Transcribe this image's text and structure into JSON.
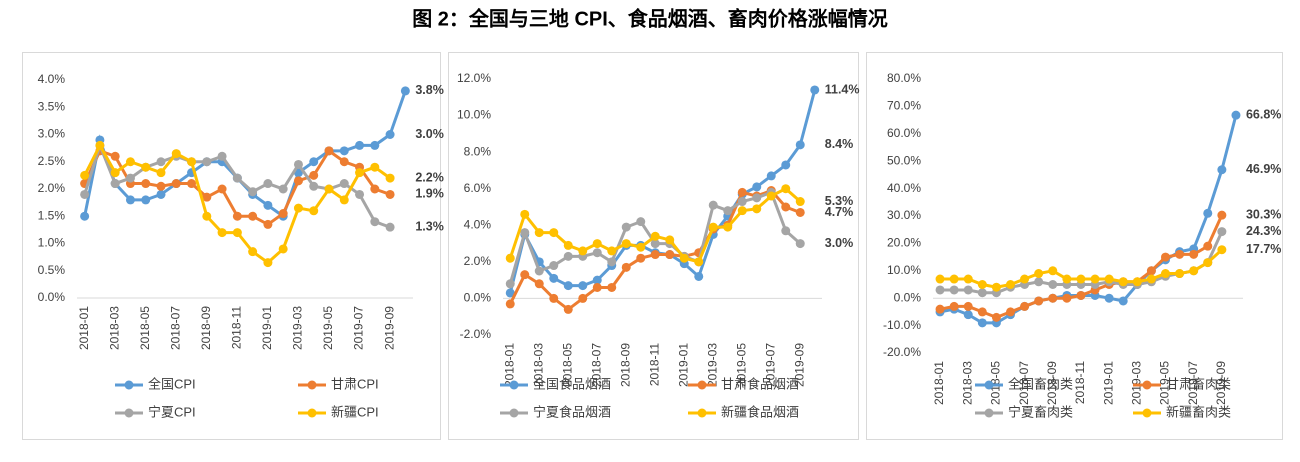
{
  "title": "图 2：全国与三地 CPI、食品烟酒、畜肉价格涨幅情况",
  "chart_data": [
    {
      "type": "line",
      "categories": [
        "2018-01",
        null,
        "2018-03",
        null,
        "2018-05",
        null,
        "2018-07",
        null,
        "2018-09",
        null,
        "2018-11",
        null,
        "2019-01",
        null,
        "2019-03",
        null,
        "2019-05",
        null,
        "2019-07",
        null,
        "2019-09",
        null
      ],
      "ylim": [
        0,
        4
      ],
      "yticks": [
        {
          "value": 0,
          "label": "0.0%"
        },
        {
          "value": 0.5,
          "label": "0.5%"
        },
        {
          "value": 1,
          "label": "1.0%"
        },
        {
          "value": 1.5,
          "label": "1.5%"
        },
        {
          "value": 2,
          "label": "2.0%"
        },
        {
          "value": 2.5,
          "label": "2.5%"
        },
        {
          "value": 3,
          "label": "3.0%"
        },
        {
          "value": 3.5,
          "label": "3.5%"
        },
        {
          "value": 4,
          "label": "4.0%"
        }
      ],
      "series": [
        {
          "name": "全国CPI",
          "color": "#5b9bd5",
          "values": [
            1.5,
            2.9,
            2.1,
            1.8,
            1.8,
            1.9,
            2.1,
            2.3,
            2.5,
            2.5,
            2.2,
            1.9,
            1.7,
            1.5,
            2.3,
            2.5,
            2.7,
            2.7,
            2.8,
            2.8,
            3.0,
            3.8
          ],
          "value_labels": [
            null,
            null,
            null,
            null,
            null,
            null,
            null,
            null,
            null,
            null,
            null,
            null,
            null,
            null,
            null,
            null,
            null,
            null,
            null,
            null,
            "3.0%",
            "3.8%"
          ]
        },
        {
          "name": "甘肃CPI",
          "color": "#ed7d31",
          "values": [
            2.1,
            2.7,
            2.6,
            2.1,
            2.1,
            2.05,
            2.1,
            2.1,
            1.85,
            2.0,
            1.5,
            1.5,
            1.35,
            1.55,
            2.15,
            2.25,
            2.7,
            2.5,
            2.4,
            2.0,
            1.9,
            null
          ],
          "value_labels": [
            null,
            null,
            null,
            null,
            null,
            null,
            null,
            null,
            null,
            null,
            null,
            null,
            null,
            null,
            null,
            null,
            null,
            null,
            null,
            null,
            "1.9%",
            null
          ]
        },
        {
          "name": "宁夏CPI",
          "color": "#a5a5a5",
          "values": [
            1.9,
            2.8,
            2.1,
            2.2,
            2.4,
            2.5,
            2.6,
            2.5,
            2.5,
            2.6,
            2.2,
            1.95,
            2.1,
            2.0,
            2.45,
            2.05,
            2.0,
            2.1,
            1.9,
            1.4,
            1.3,
            null
          ],
          "value_labels": [
            null,
            null,
            null,
            null,
            null,
            null,
            null,
            null,
            null,
            null,
            null,
            null,
            null,
            null,
            null,
            null,
            null,
            null,
            null,
            null,
            "1.3%",
            null
          ]
        },
        {
          "name": "新疆CPI",
          "color": "#ffc000",
          "values": [
            2.25,
            2.8,
            2.3,
            2.5,
            2.4,
            2.3,
            2.65,
            2.5,
            1.5,
            1.2,
            1.2,
            0.85,
            0.65,
            0.9,
            1.65,
            1.6,
            2.0,
            1.8,
            2.3,
            2.4,
            2.2,
            null
          ],
          "value_labels": [
            null,
            null,
            null,
            null,
            null,
            null,
            null,
            null,
            null,
            null,
            null,
            null,
            null,
            null,
            null,
            null,
            null,
            null,
            null,
            null,
            "2.2%",
            null
          ]
        }
      ]
    },
    {
      "type": "line",
      "categories": [
        "2018-01",
        null,
        "2018-03",
        null,
        "2018-05",
        null,
        "2018-07",
        null,
        "2018-09",
        null,
        "2018-11",
        null,
        "2019-01",
        null,
        "2019-03",
        null,
        "2019-05",
        null,
        "2019-07",
        null,
        "2019-09",
        null
      ],
      "ylim": [
        -2,
        12
      ],
      "yticks": [
        {
          "value": -2,
          "label": "-2.0%"
        },
        {
          "value": 0,
          "label": "0.0%"
        },
        {
          "value": 2,
          "label": "2.0%"
        },
        {
          "value": 4,
          "label": "4.0%"
        },
        {
          "value": 6,
          "label": "6.0%"
        },
        {
          "value": 8,
          "label": "8.0%"
        },
        {
          "value": 10,
          "label": "10.0%"
        },
        {
          "value": 12,
          "label": "12.0%"
        }
      ],
      "series": [
        {
          "name": "全国食品烟酒",
          "color": "#5b9bd5",
          "values": [
            0.3,
            3.5,
            2.0,
            1.1,
            0.7,
            0.7,
            1.0,
            1.8,
            2.9,
            2.9,
            2.5,
            2.4,
            1.9,
            1.2,
            3.5,
            4.5,
            5.7,
            6.1,
            6.7,
            7.3,
            8.4,
            11.4
          ],
          "value_labels": [
            null,
            null,
            null,
            null,
            null,
            null,
            null,
            null,
            null,
            null,
            null,
            null,
            null,
            null,
            null,
            null,
            null,
            null,
            null,
            null,
            "8.4%",
            "11.4%"
          ]
        },
        {
          "name": "甘肃食品烟酒",
          "color": "#ed7d31",
          "values": [
            -0.3,
            1.3,
            0.8,
            0.0,
            -0.6,
            0.0,
            0.6,
            0.6,
            1.7,
            2.2,
            2.4,
            2.4,
            2.3,
            2.5,
            3.8,
            4.0,
            5.8,
            5.6,
            5.9,
            5.0,
            4.7,
            null
          ],
          "value_labels": [
            null,
            null,
            null,
            null,
            null,
            null,
            null,
            null,
            null,
            null,
            null,
            null,
            null,
            null,
            null,
            null,
            null,
            null,
            null,
            null,
            "4.7%",
            null
          ]
        },
        {
          "name": "宁夏食品烟酒",
          "color": "#a5a5a5",
          "values": [
            0.8,
            3.6,
            1.5,
            1.8,
            2.3,
            2.3,
            2.5,
            2.0,
            3.9,
            4.2,
            3.0,
            3.0,
            2.3,
            2.0,
            5.1,
            4.8,
            5.3,
            5.5,
            5.8,
            3.7,
            3.0,
            null
          ],
          "value_labels": [
            null,
            null,
            null,
            null,
            null,
            null,
            null,
            null,
            null,
            null,
            null,
            null,
            null,
            null,
            null,
            null,
            null,
            null,
            null,
            null,
            "3.0%",
            null
          ]
        },
        {
          "name": "新疆食品烟酒",
          "color": "#ffc000",
          "values": [
            2.2,
            4.6,
            3.6,
            3.6,
            2.9,
            2.6,
            3.0,
            2.6,
            3.0,
            2.8,
            3.4,
            3.2,
            2.2,
            2.0,
            3.9,
            3.9,
            4.8,
            4.9,
            5.6,
            6.0,
            5.3,
            null
          ],
          "value_labels": [
            null,
            null,
            null,
            null,
            null,
            null,
            null,
            null,
            null,
            null,
            null,
            null,
            null,
            null,
            null,
            null,
            null,
            null,
            null,
            null,
            "5.3%",
            null
          ]
        }
      ]
    },
    {
      "type": "line",
      "categories": [
        "2018-01",
        null,
        "2018-03",
        null,
        "2018-05",
        null,
        "2018-07",
        null,
        "2018-09",
        null,
        "2018-11",
        null,
        "2019-01",
        null,
        "2019-03",
        null,
        "2019-05",
        null,
        "2019-07",
        null,
        "2019-09",
        null
      ],
      "ylim": [
        -20,
        80
      ],
      "yticks": [
        {
          "value": -20,
          "label": "-20.0%"
        },
        {
          "value": -10,
          "label": "-10.0%"
        },
        {
          "value": 0,
          "label": "0.0%"
        },
        {
          "value": 10,
          "label": "10.0%"
        },
        {
          "value": 20,
          "label": "20.0%"
        },
        {
          "value": 30,
          "label": "30.0%"
        },
        {
          "value": 40,
          "label": "40.0%"
        },
        {
          "value": 50,
          "label": "50.0%"
        },
        {
          "value": 60,
          "label": "60.0%"
        },
        {
          "value": 70,
          "label": "70.0%"
        },
        {
          "value": 80,
          "label": "80.0%"
        }
      ],
      "series": [
        {
          "name": "全国畜肉类",
          "color": "#5b9bd5",
          "values": [
            -5,
            -4,
            -6,
            -9,
            -9,
            -6,
            -3,
            -1,
            0,
            1,
            1,
            1,
            0,
            -1,
            5,
            10,
            14,
            17,
            18,
            31,
            46.9,
            66.8
          ],
          "value_labels": [
            null,
            null,
            null,
            null,
            null,
            null,
            null,
            null,
            null,
            null,
            null,
            null,
            null,
            null,
            null,
            null,
            null,
            null,
            null,
            null,
            "46.9%",
            "66.8%"
          ]
        },
        {
          "name": "甘肃畜肉类",
          "color": "#ed7d31",
          "values": [
            -4,
            -3,
            -3,
            -5,
            -7,
            -5,
            -3,
            -1,
            0,
            0,
            1,
            3,
            5,
            6,
            6,
            10,
            15,
            16,
            16,
            19,
            30.3,
            null
          ],
          "value_labels": [
            null,
            null,
            null,
            null,
            null,
            null,
            null,
            null,
            null,
            null,
            null,
            null,
            null,
            null,
            null,
            null,
            null,
            null,
            null,
            null,
            "30.3%",
            null
          ]
        },
        {
          "name": "宁夏畜肉类",
          "color": "#a5a5a5",
          "values": [
            3,
            3,
            3,
            2,
            2,
            4,
            5,
            6,
            5,
            5,
            5,
            5,
            6,
            5,
            5,
            6,
            8,
            9,
            10,
            13,
            24.3,
            null
          ],
          "value_labels": [
            null,
            null,
            null,
            null,
            null,
            null,
            null,
            null,
            null,
            null,
            null,
            null,
            null,
            null,
            null,
            null,
            null,
            null,
            null,
            null,
            "24.3%",
            null
          ]
        },
        {
          "name": "新疆畜肉类",
          "color": "#ffc000",
          "values": [
            7,
            7,
            7,
            5,
            4,
            5,
            7,
            9,
            10,
            7,
            7,
            7,
            7,
            6,
            6,
            7,
            9,
            9,
            10,
            13,
            17.7,
            null
          ],
          "value_labels": [
            null,
            null,
            null,
            null,
            null,
            null,
            null,
            null,
            null,
            null,
            null,
            null,
            null,
            null,
            null,
            null,
            null,
            null,
            null,
            null,
            "17.7%",
            null
          ]
        }
      ]
    }
  ]
}
